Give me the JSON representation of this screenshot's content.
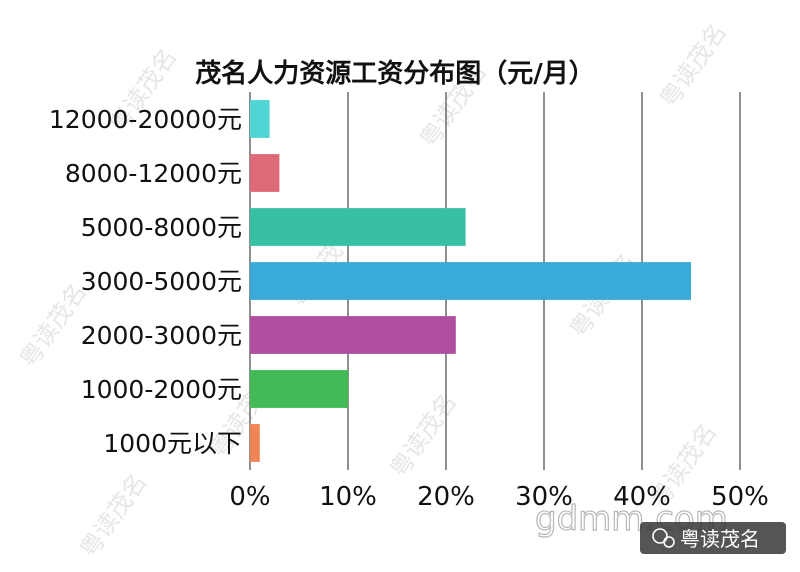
{
  "chart_data": {
    "type": "bar",
    "orientation": "horizontal",
    "title": "茂名人力资源工资分布图（元/月）",
    "categories": [
      "12000-20000元",
      "8000-12000元",
      "5000-8000元",
      "3000-5000元",
      "2000-3000元",
      "1000-2000元",
      "1000元以下"
    ],
    "values": [
      2,
      3,
      22,
      45,
      21,
      10,
      1
    ],
    "colors": [
      "#4fd6d4",
      "#de6a77",
      "#38c0a4",
      "#3aaad9",
      "#b04f9f",
      "#42ba55",
      "#ef8456"
    ],
    "xlim": [
      0,
      50
    ],
    "xticks": [
      "0%",
      "10%",
      "20%",
      "30%",
      "40%",
      "50%"
    ],
    "grid": true
  },
  "watermarks": {
    "site": "gdmm.com",
    "brand": "粤读茂名",
    "tiled": "粤读茂名"
  }
}
